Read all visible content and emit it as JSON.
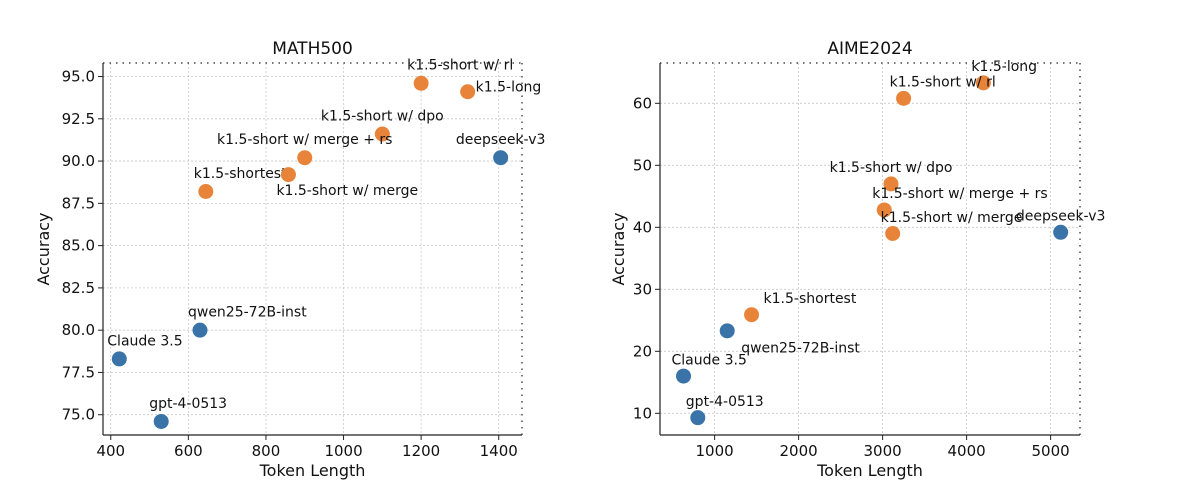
{
  "colors": {
    "blue": "#3a73a8",
    "orange": "#e8843a",
    "grid": "#c8c8c8",
    "axis": "#222222"
  },
  "chart_data": [
    {
      "type": "scatter",
      "title": "MATH500",
      "xlabel": "Token Length",
      "ylabel": "Accuracy",
      "xlim": [
        380,
        1460
      ],
      "ylim": [
        73.8,
        95.8
      ],
      "xticks": [
        400,
        600,
        800,
        1000,
        1200,
        1400
      ],
      "yticks": [
        75.0,
        77.5,
        80.0,
        82.5,
        85.0,
        87.5,
        90.0,
        92.5,
        95.0
      ],
      "ytick_labels": [
        "75.0",
        "77.5",
        "80.0",
        "82.5",
        "85.0",
        "87.5",
        "90.0",
        "92.5",
        "95.0"
      ],
      "grid": true,
      "points": [
        {
          "label": "k1.5-short w/ rl",
          "x": 1200,
          "y": 94.6,
          "group": "orange",
          "lx": 1200,
          "ly": 95.7,
          "anchor": "start",
          "ldx": -14
        },
        {
          "label": "k1.5-long",
          "x": 1320,
          "y": 94.1,
          "group": "orange",
          "lx": 1320,
          "ly": 94.4,
          "anchor": "start",
          "ldx": 8
        },
        {
          "label": "k1.5-short w/ dpo",
          "x": 1100,
          "y": 91.6,
          "group": "orange",
          "lx": 1100,
          "ly": 92.7,
          "anchor": "middle",
          "ldx": 0
        },
        {
          "label": "k1.5-short w/ merge + rs",
          "x": 900,
          "y": 90.2,
          "group": "orange",
          "lx": 900,
          "ly": 91.3,
          "anchor": "middle",
          "ldx": 0
        },
        {
          "label": "k1.5-shortest",
          "x": 645,
          "y": 88.2,
          "group": "orange",
          "lx": 645,
          "ly": 89.3,
          "anchor": "start",
          "ldx": -12
        },
        {
          "label": "k1.5-short w/ merge",
          "x": 858,
          "y": 89.2,
          "group": "orange",
          "lx": 858,
          "ly": 88.3,
          "anchor": "start",
          "ldx": -12
        },
        {
          "label": "deepseek-v3",
          "x": 1405,
          "y": 90.2,
          "group": "blue",
          "lx": 1405,
          "ly": 91.3,
          "anchor": "middle",
          "ldx": 0
        },
        {
          "label": "qwen25-72B-inst",
          "x": 630,
          "y": 80.0,
          "group": "blue",
          "lx": 630,
          "ly": 81.1,
          "anchor": "start",
          "ldx": -12
        },
        {
          "label": "Claude 3.5",
          "x": 422,
          "y": 78.3,
          "group": "blue",
          "lx": 422,
          "ly": 79.4,
          "anchor": "start",
          "ldx": -12
        },
        {
          "label": "gpt-4-0513",
          "x": 530,
          "y": 74.6,
          "group": "blue",
          "lx": 530,
          "ly": 75.7,
          "anchor": "start",
          "ldx": -12
        }
      ]
    },
    {
      "type": "scatter",
      "title": "AIME2024",
      "xlabel": "Token Length",
      "ylabel": "Accuracy",
      "xlim": [
        350,
        5350
      ],
      "ylim": [
        6.5,
        66.5
      ],
      "xticks": [
        1000,
        2000,
        3000,
        4000,
        5000
      ],
      "yticks": [
        10,
        20,
        30,
        40,
        50,
        60
      ],
      "ytick_labels": [
        "10",
        "20",
        "30",
        "40",
        "50",
        "60"
      ],
      "grid": true,
      "points": [
        {
          "label": "k1.5-long",
          "x": 4200,
          "y": 63.3,
          "group": "orange",
          "lx": 4200,
          "ly": 66.0,
          "anchor": "start",
          "ldx": -12
        },
        {
          "label": "k1.5-short w/ rl",
          "x": 3250,
          "y": 60.8,
          "group": "orange",
          "lx": 3250,
          "ly": 63.5,
          "anchor": "start",
          "ldx": -14
        },
        {
          "label": "k1.5-short w/ dpo",
          "x": 3100,
          "y": 47.0,
          "group": "orange",
          "lx": 3100,
          "ly": 49.7,
          "anchor": "middle",
          "ldx": 0
        },
        {
          "label": "k1.5-short w/ merge + rs",
          "x": 3020,
          "y": 42.8,
          "group": "orange",
          "lx": 3020,
          "ly": 45.5,
          "anchor": "start",
          "ldx": -12
        },
        {
          "label": "k1.5-short w/ merge",
          "x": 3120,
          "y": 39.0,
          "group": "orange",
          "lx": 3120,
          "ly": 41.7,
          "anchor": "start",
          "ldx": -12
        },
        {
          "label": "k1.5-shortest",
          "x": 1440,
          "y": 25.9,
          "group": "orange",
          "lx": 1440,
          "ly": 28.6,
          "anchor": "start",
          "ldx": 12
        },
        {
          "label": "deepseek-v3",
          "x": 5120,
          "y": 39.2,
          "group": "blue",
          "lx": 5120,
          "ly": 41.9,
          "anchor": "middle",
          "ldx": 0
        },
        {
          "label": "qwen25-72B-inst",
          "x": 1150,
          "y": 23.3,
          "group": "blue",
          "lx": 1150,
          "ly": 20.6,
          "anchor": "start",
          "ldx": 14
        },
        {
          "label": "Claude 3.5",
          "x": 630,
          "y": 16.0,
          "group": "blue",
          "lx": 630,
          "ly": 18.7,
          "anchor": "start",
          "ldx": -12
        },
        {
          "label": "gpt-4-0513",
          "x": 800,
          "y": 9.3,
          "group": "blue",
          "lx": 800,
          "ly": 12.0,
          "anchor": "start",
          "ldx": -12
        }
      ]
    }
  ]
}
